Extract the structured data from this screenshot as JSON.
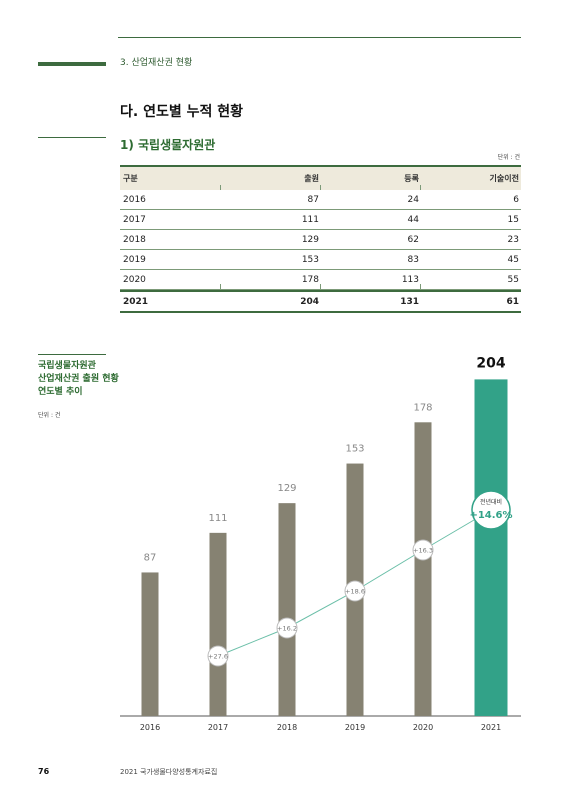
{
  "header": {
    "section": "3. 산업재산권 현황"
  },
  "heading": "다. 연도별 누적 현황",
  "subheading": "1) 국립생물자원관",
  "table": {
    "unit": "단위 : 건",
    "columns": [
      "구분",
      "출원",
      "등록",
      "기술이전"
    ],
    "rows": [
      [
        "2016",
        "87",
        "24",
        "6"
      ],
      [
        "2017",
        "111",
        "44",
        "15"
      ],
      [
        "2018",
        "129",
        "62",
        "23"
      ],
      [
        "2019",
        "153",
        "83",
        "45"
      ],
      [
        "2020",
        "178",
        "113",
        "55"
      ]
    ],
    "total": [
      "2021",
      "204",
      "131",
      "61"
    ]
  },
  "chart_title": "국립생물자원관\n산업재산권 출원 현황\n연도별 추이",
  "chart_unit": "단위 : 건",
  "chart_data": {
    "type": "bar",
    "categories": [
      "2016",
      "2017",
      "2018",
      "2019",
      "2020",
      "2021"
    ],
    "values": [
      87,
      111,
      129,
      153,
      178,
      204
    ],
    "growth_labels": [
      "+27.6",
      "+16.2",
      "+18.6",
      "+16.3",
      "+14.6%"
    ],
    "callout_label": "전년대비",
    "bar_color": "#868272",
    "highlight_color": "#32a288",
    "line_color": "#6bbfa8"
  },
  "footer": {
    "page": "76",
    "title": "2021 국가생물다양성통계자료집"
  }
}
